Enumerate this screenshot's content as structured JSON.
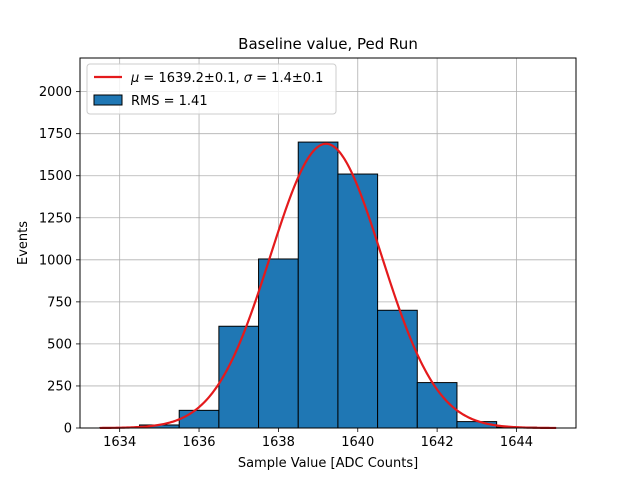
{
  "chart_data": {
    "type": "bar",
    "title": "Baseline value, Ped Run",
    "xlabel": "Sample Value [ADC Counts]",
    "ylabel": "Events",
    "xlim": [
      1633,
      1645.5
    ],
    "ylim": [
      0,
      2200
    ],
    "xticks": [
      1634,
      1636,
      1638,
      1640,
      1642,
      1644
    ],
    "yticks": [
      0,
      250,
      500,
      750,
      1000,
      1250,
      1500,
      1750,
      2000
    ],
    "grid": true,
    "legend_position": "top-left",
    "histogram": {
      "name": "RMS = 1.41",
      "color": "#1f77b4",
      "edge_color": "#000000",
      "bin_edges": [
        1633.5,
        1634.5,
        1635.5,
        1636.5,
        1637.5,
        1638.5,
        1639.5,
        1640.5,
        1641.5,
        1642.5,
        1643.5,
        1644.5
      ],
      "counts": [
        2,
        18,
        105,
        605,
        1005,
        1700,
        1510,
        700,
        270,
        38,
        5
      ]
    },
    "fit": {
      "name": "μ = 1639.2±0.1, σ = 1.4±0.1",
      "legend_mu": "μ",
      "legend_mu_value": " = 1639.2±0.1, ",
      "legend_sigma": "σ",
      "legend_sigma_value": " = 1.4±0.1",
      "color": "#e41a1c",
      "mu": 1639.2,
      "sigma": 1.4,
      "amplitude": 1690,
      "x_start": 1633.5,
      "x_end": 1645
    }
  }
}
